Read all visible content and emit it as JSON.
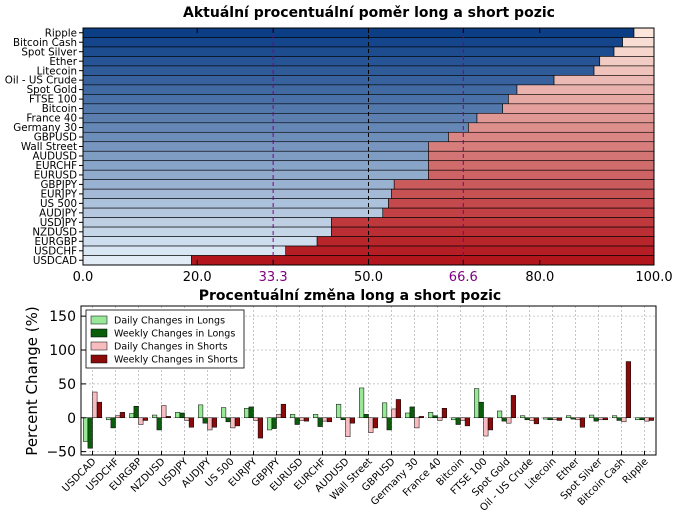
{
  "chart_data": [
    {
      "type": "bar",
      "orientation": "horizontal",
      "stacked": true,
      "title": "Aktuální procentuální poměr long a short pozic",
      "categories": [
        "Ripple",
        "Bitcoin Cash",
        "Spot Silver",
        "Ether",
        "Litecoin",
        "Oil - US Crude",
        "Spot Gold",
        "FTSE 100",
        "Bitcoin",
        "France 40",
        "Germany 30",
        "GBPUSD",
        "Wall Street",
        "AUDUSD",
        "EURCHF",
        "EURUSD",
        "GBPJPY",
        "EURJPY",
        "US 500",
        "AUDJPY",
        "USDJPY",
        "NZDUSD",
        "EURGBP",
        "USDCHF",
        "USDCAD"
      ],
      "series": [
        {
          "values": [
            96.5,
            94.5,
            93.0,
            90.5,
            89.5,
            82.5,
            76.0,
            74.5,
            73.5,
            69.0,
            67.5,
            64.0,
            60.5,
            60.5,
            60.5,
            60.5,
            54.5,
            54.0,
            53.5,
            52.5,
            43.5,
            43.5,
            41.0,
            35.5,
            19.0
          ]
        },
        {
          "values": [
            3.5,
            5.5,
            7.0,
            9.5,
            10.5,
            17.5,
            24.0,
            25.5,
            26.5,
            31.0,
            32.5,
            36.0,
            39.5,
            39.5,
            39.5,
            39.5,
            45.5,
            46.0,
            46.5,
            47.5,
            56.5,
            56.5,
            59.0,
            64.5,
            81.0
          ]
        }
      ],
      "xlim": [
        0,
        100
      ],
      "xticks": [
        "0.0",
        "20.0",
        "33.3",
        "50.0",
        "66.6",
        "80.0",
        "100.0"
      ],
      "reference_lines": [
        33.3,
        50.0,
        66.6
      ],
      "reference_colors": {
        "33.3": "#800080",
        "50.0": "#000000",
        "66.6": "#800080"
      },
      "long_palette": [
        "#0c3e86",
        "#e1ecf7"
      ],
      "short_palette": [
        "#fbe6dc",
        "#b2151c"
      ]
    },
    {
      "type": "bar",
      "title": "Procentuální změna long a short pozic",
      "ylabel": "Percent Change (%)",
      "ylim": [
        -55,
        165
      ],
      "yticks": [
        "150",
        "100",
        "50",
        "0",
        "−50"
      ],
      "grid": true,
      "legend_position": "top-left",
      "categories": [
        "USDCAD",
        "USDCHF",
        "EURGBP",
        "NZDUSD",
        "USDJPY",
        "AUDJPY",
        "US 500",
        "EURJPY",
        "GBPJPY",
        "EURUSD",
        "EURCHF",
        "AUDUSD",
        "Wall Street",
        "GBPUSD",
        "Germany 30",
        "France 40",
        "Bitcoin",
        "FTSE 100",
        "Spot Gold",
        "Oil - US Crude",
        "Litecoin",
        "Ether",
        "Spot Silver",
        "Bitcoin Cash",
        "Ripple"
      ],
      "series": [
        {
          "name": "Daily Changes in Longs",
          "color": "#98e898",
          "values": [
            -35,
            -3,
            6,
            4,
            8,
            19,
            15,
            14,
            -18,
            5,
            5,
            20,
            44,
            22,
            7,
            8,
            -3,
            43,
            10,
            3,
            -2,
            3,
            4,
            3,
            -3
          ]
        },
        {
          "name": "Weekly Changes in Longs",
          "color": "#0b5c0b",
          "values": [
            -45,
            -15,
            17,
            -18,
            7,
            -8,
            -6,
            16,
            -16,
            -10,
            -13,
            -3,
            5,
            -18,
            16,
            3,
            -10,
            23,
            -5,
            -3,
            -3,
            -2,
            -5,
            -4,
            -3
          ]
        },
        {
          "name": "Daily Changes in Shorts",
          "color": "#f7bcc0",
          "values": [
            38,
            3,
            -10,
            18,
            -4,
            -18,
            -15,
            -4,
            5,
            -4,
            -5,
            -28,
            -22,
            13,
            -15,
            -4,
            -4,
            -27,
            -8,
            -4,
            -3,
            -3,
            -3,
            -6,
            -5
          ]
        },
        {
          "name": "Weekly Changes in Shorts",
          "color": "#8b0a0a",
          "values": [
            23,
            8,
            -4,
            2,
            -14,
            -14,
            -12,
            -30,
            20,
            -5,
            -6,
            -8,
            -15,
            27,
            2,
            14,
            -12,
            -18,
            33,
            -9,
            -4,
            -14,
            -3,
            83,
            -4
          ]
        }
      ]
    }
  ]
}
